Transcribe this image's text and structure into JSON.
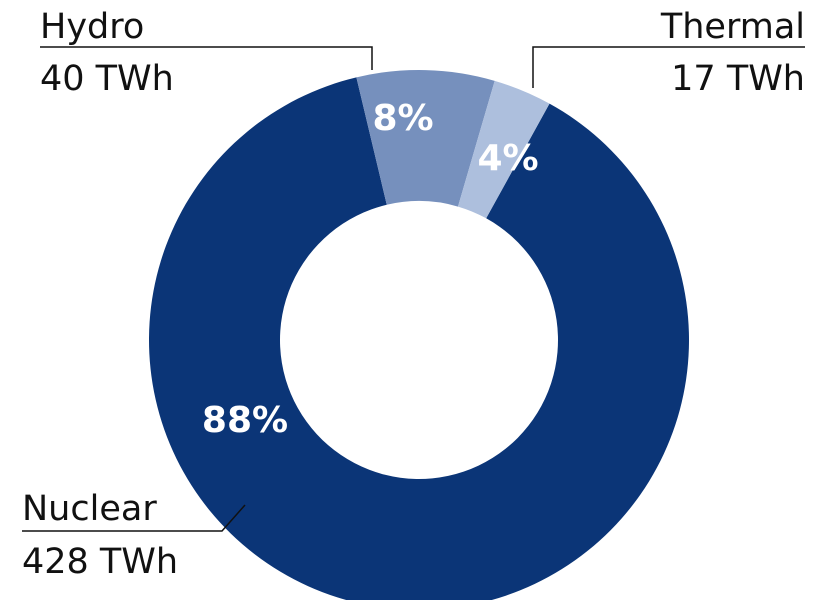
{
  "chart_data": {
    "type": "donut",
    "categories": [
      "Nuclear",
      "Hydro",
      "Thermal"
    ],
    "values": [
      428,
      40,
      17
    ],
    "value_labels": [
      "428 TWh",
      "40 TWh",
      "17 TWh"
    ],
    "percents": [
      88,
      8,
      4
    ],
    "percent_labels": [
      "88%",
      "8%",
      "4%"
    ],
    "colors": [
      "#0b3577",
      "#7690bd",
      "#adbfdd"
    ]
  }
}
